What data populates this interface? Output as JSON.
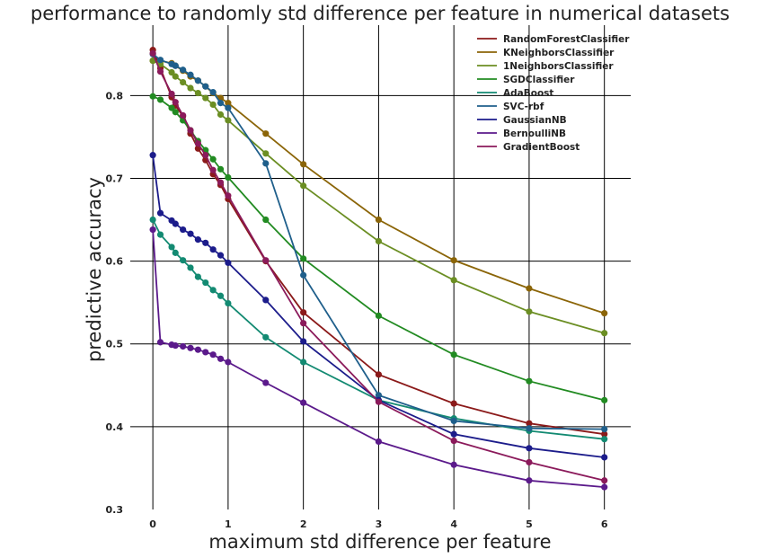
{
  "chart_data": {
    "type": "line",
    "title": "performance to randomly std difference per feature in numerical datasets",
    "xlabel": "maximum std difference per feature",
    "ylabel": "predictive accuracy",
    "xlim": [
      -0.3,
      6.35
    ],
    "ylim": [
      0.3,
      0.885
    ],
    "xticks": [
      0,
      1,
      2,
      3,
      4,
      5,
      6
    ],
    "yticks": [
      0.3,
      0.4,
      0.5,
      0.6,
      0.7,
      0.8
    ],
    "xtick_labels": [
      "0",
      "1",
      "2",
      "3",
      "4",
      "5",
      "6"
    ],
    "ytick_labels": [
      "0.3",
      "0.4",
      "0.5",
      "0.6",
      "0.7",
      "0.8"
    ],
    "grid": true,
    "legend_position": "top-right",
    "x": [
      0,
      0.1,
      0.25,
      0.3,
      0.4,
      0.5,
      0.6,
      0.7,
      0.8,
      0.9,
      1,
      1.5,
      2,
      3,
      4,
      5,
      6
    ],
    "series": [
      {
        "name": "RandomForestClassifier",
        "color": "#8b1a1a",
        "values": [
          0.855,
          0.833,
          0.798,
          0.788,
          0.775,
          0.754,
          0.736,
          0.722,
          0.705,
          0.692,
          0.675,
          0.6,
          0.538,
          0.463,
          0.428,
          0.404,
          0.391
        ]
      },
      {
        "name": "KNeighborsClassifier",
        "color": "#8b6508",
        "values": [
          0.842,
          0.842,
          0.839,
          0.836,
          0.83,
          0.823,
          0.818,
          0.811,
          0.803,
          0.797,
          0.791,
          0.754,
          0.717,
          0.65,
          0.601,
          0.567,
          0.537
        ]
      },
      {
        "name": "1NeighborsClassifier",
        "color": "#6b8e23",
        "values": [
          0.842,
          0.838,
          0.828,
          0.823,
          0.816,
          0.809,
          0.803,
          0.797,
          0.789,
          0.777,
          0.77,
          0.73,
          0.691,
          0.624,
          0.577,
          0.539,
          0.513
        ]
      },
      {
        "name": "SGDClassifier",
        "color": "#228b22",
        "values": [
          0.799,
          0.795,
          0.785,
          0.78,
          0.77,
          0.758,
          0.745,
          0.734,
          0.723,
          0.711,
          0.701,
          0.65,
          0.603,
          0.534,
          0.487,
          0.455,
          0.432
        ]
      },
      {
        "name": "AdaBoost",
        "color": "#138a72",
        "values": [
          0.65,
          0.632,
          0.617,
          0.61,
          0.601,
          0.592,
          0.581,
          0.574,
          0.565,
          0.558,
          0.549,
          0.508,
          0.478,
          0.432,
          0.41,
          0.395,
          0.385
        ]
      },
      {
        "name": "SVC-rbf",
        "color": "#1f5f8b",
        "values": [
          0.85,
          0.843,
          0.838,
          0.836,
          0.831,
          0.825,
          0.818,
          0.811,
          0.804,
          0.791,
          0.785,
          0.718,
          0.583,
          0.438,
          0.407,
          0.398,
          0.397
        ]
      },
      {
        "name": "GaussianNB",
        "color": "#1c1c8b",
        "values": [
          0.728,
          0.658,
          0.649,
          0.645,
          0.638,
          0.633,
          0.626,
          0.622,
          0.614,
          0.607,
          0.598,
          0.553,
          0.503,
          0.432,
          0.391,
          0.374,
          0.363
        ]
      },
      {
        "name": "BernoulliNB",
        "color": "#5b1a8b",
        "values": [
          0.638,
          0.502,
          0.499,
          0.498,
          0.497,
          0.495,
          0.493,
          0.49,
          0.487,
          0.482,
          0.478,
          0.453,
          0.429,
          0.382,
          0.354,
          0.335,
          0.327
        ]
      },
      {
        "name": "GradientBoost",
        "color": "#8b1a5b",
        "values": [
          0.851,
          0.829,
          0.802,
          0.792,
          0.776,
          0.758,
          0.742,
          0.728,
          0.71,
          0.695,
          0.679,
          0.601,
          0.525,
          0.43,
          0.383,
          0.357,
          0.335
        ]
      }
    ]
  }
}
